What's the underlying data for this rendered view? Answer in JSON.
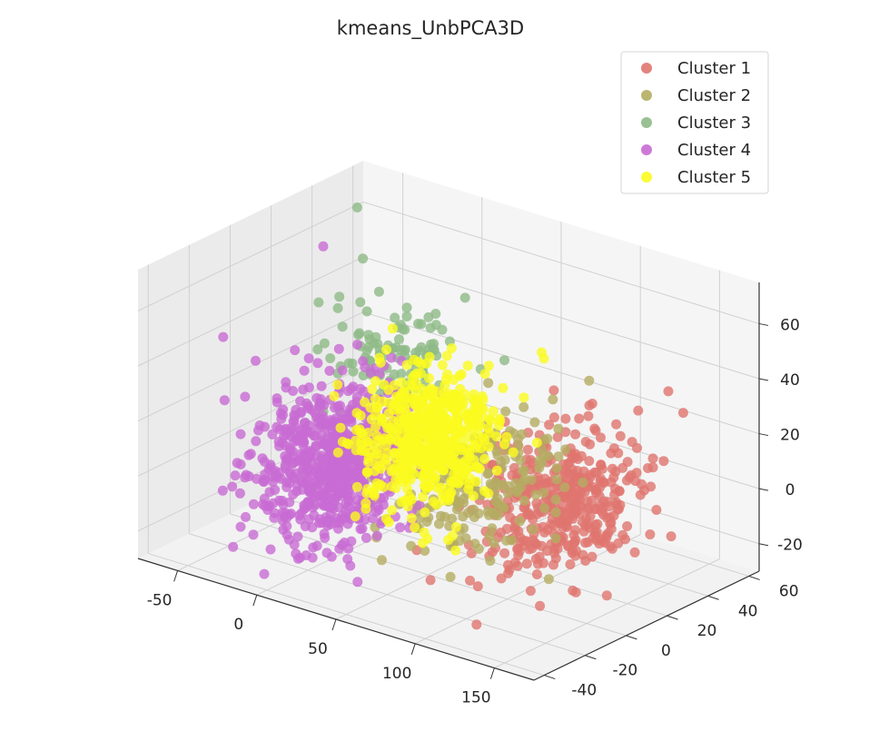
{
  "chart_data": {
    "type": "scatter",
    "title": "kmeans_UnbPCA3D",
    "projection": "3d",
    "grid": true,
    "legend_position": "top-right",
    "axes": {
      "x": {
        "range": [
          -75,
          175
        ],
        "ticks": [
          -50,
          0,
          50,
          100,
          150
        ]
      },
      "y": {
        "range": [
          -45,
          65
        ],
        "ticks": [
          -40,
          -20,
          0,
          20,
          40,
          60
        ]
      },
      "z": {
        "range": [
          -30,
          75
        ],
        "ticks": [
          -20,
          0,
          20,
          40,
          60
        ]
      }
    },
    "series": [
      {
        "name": "Cluster 1",
        "color": "#e0766f",
        "center": [
          120,
          10,
          5
        ],
        "spread": [
          18,
          15,
          12
        ],
        "count": 420,
        "outliers": [
          [
            150,
            40,
            40
          ],
          [
            160,
            30,
            20
          ],
          [
            140,
            55,
            25
          ],
          [
            145,
            20,
            10
          ]
        ]
      },
      {
        "name": "Cluster 2",
        "color": "#b4ad63",
        "center": [
          75,
          5,
          5
        ],
        "spread": [
          16,
          18,
          12
        ],
        "count": 200,
        "outliers": [
          [
            100,
            40,
            35
          ],
          [
            90,
            30,
            30
          ]
        ]
      },
      {
        "name": "Cluster 3",
        "color": "#8fba87",
        "center": [
          5,
          20,
          32
        ],
        "spread": [
          14,
          10,
          10
        ],
        "count": 110,
        "outliers": [
          [
            -40,
            35,
            75
          ],
          [
            -30,
            30,
            60
          ],
          [
            -45,
            20,
            45
          ],
          [
            40,
            45,
            30
          ]
        ]
      },
      {
        "name": "Cluster 4",
        "color": "#c86bd3",
        "center": [
          -10,
          0,
          0
        ],
        "spread": [
          16,
          14,
          14
        ],
        "count": 700,
        "outliers": [
          [
            -55,
            30,
            60
          ],
          [
            -60,
            20,
            25
          ]
        ]
      },
      {
        "name": "Cluster 5",
        "color": "#fbfb1f",
        "center": [
          30,
          15,
          10
        ],
        "spread": [
          15,
          12,
          12
        ],
        "count": 600,
        "outliers": [
          [
            70,
            40,
            40
          ],
          [
            65,
            45,
            35
          ]
        ]
      }
    ]
  }
}
